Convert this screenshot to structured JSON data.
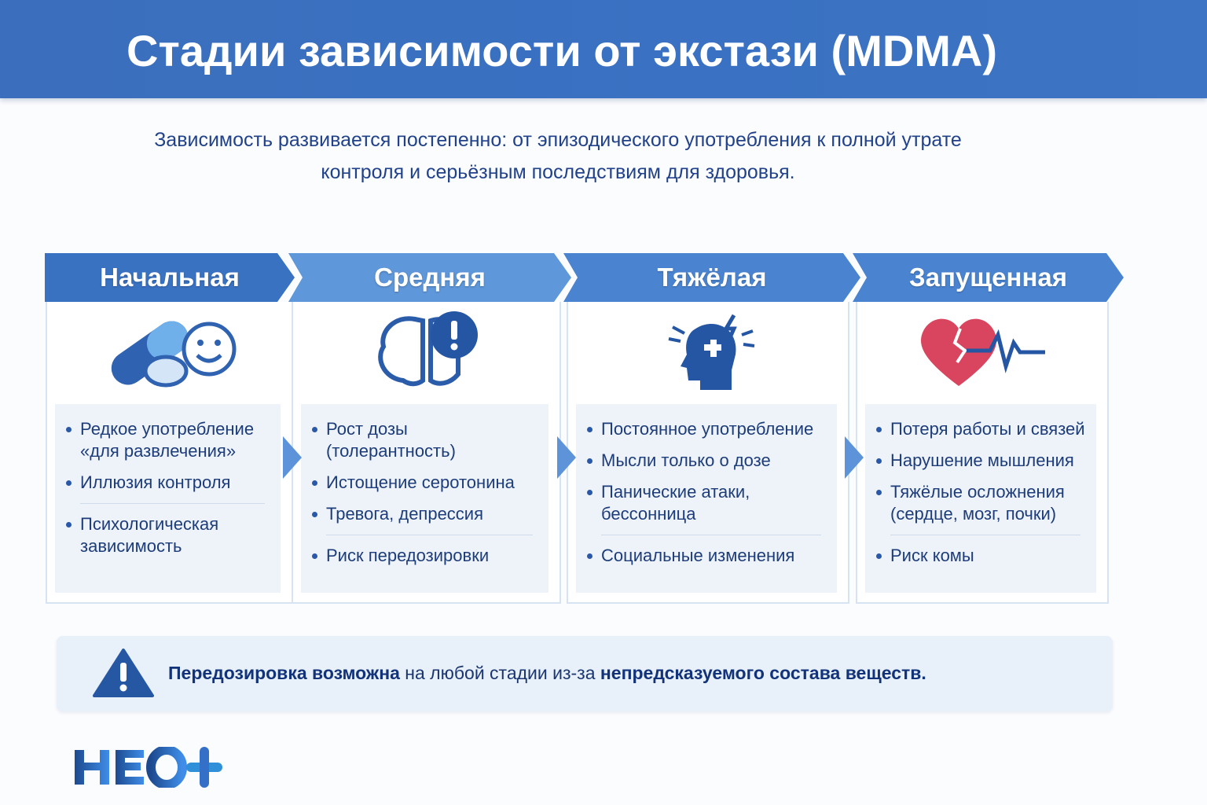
{
  "header": {
    "title": "Стадии зависимости от экстази (MDMA)"
  },
  "subtitle": {
    "line1": "Зависимость развивается постепенно: от эпизодического употребления к полной утрате",
    "line2": "контроля и серьёзным последствиям для здоровья."
  },
  "stages": [
    {
      "title": "Начальная",
      "icon": "pills-smiley-icon",
      "color": "#3a72c2",
      "items": [
        "Редкое употребление «для развлечения»",
        "Иллюзия контроля",
        "Психологическая зависимость"
      ]
    },
    {
      "title": "Средняя",
      "icon": "brain-alert-icon",
      "color": "#5e97da",
      "items": [
        "Рост дозы (толерантность)",
        "Истощение серотонина",
        "Тревога, депрессия",
        "Риск передозировки"
      ]
    },
    {
      "title": "Тяжёлая",
      "icon": "head-puzzle-icon",
      "color": "#4a84d0",
      "items": [
        "Постоянное употребление",
        "Мысли только о дозе",
        "Панические атаки, бессонница",
        "Социальные изменения"
      ]
    },
    {
      "title": "Запущенная",
      "icon": "broken-heart-pulse-icon",
      "color": "#4a84d0",
      "items": [
        "Потеря работы и связей",
        "Нарушение мышления",
        "Тяжёлые осложнения (сердце, мозг, почки)",
        "Риск комы"
      ]
    }
  ],
  "warning": {
    "icon": "warning-triangle-icon",
    "bold1": "Передозировка возможна",
    "text": " на любой стадии из-за ",
    "bold2": "непредсказуемого состава веществ."
  },
  "logo": {
    "text": "НЕО+"
  },
  "colors": {
    "header": "#3a70c0",
    "text": "#1d3c7a",
    "heart": "#d9445e"
  }
}
